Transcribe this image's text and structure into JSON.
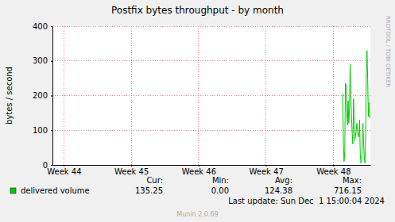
{
  "chart_data": {
    "type": "line",
    "title": "Postfix bytes throughput - by month",
    "y_label": "bytes / second",
    "x": [
      48.14,
      48.15,
      48.16,
      48.17,
      48.18,
      48.19,
      48.2,
      48.21,
      48.22,
      48.23,
      48.24,
      48.25,
      48.26,
      48.27,
      48.28,
      48.29,
      48.3,
      48.31,
      48.32,
      48.33,
      48.34,
      48.35,
      48.36,
      48.37,
      48.38,
      48.39,
      48.4,
      48.41,
      48.42,
      48.43,
      48.44,
      48.45,
      48.46,
      48.47,
      48.48,
      48.49,
      48.5,
      48.51,
      48.52,
      48.53,
      48.54
    ],
    "series": [
      {
        "name": "delivered volume",
        "color": "#00CC00",
        "values": [
          205,
          60,
          10,
          40,
          235,
          230,
          150,
          115,
          185,
          120,
          160,
          290,
          200,
          140,
          90,
          60,
          190,
          120,
          70,
          85,
          100,
          120,
          95,
          85,
          80,
          130,
          30,
          5,
          10,
          60,
          120,
          60,
          20,
          5,
          90,
          250,
          330,
          250,
          140,
          180,
          135
        ],
        "stats": {
          "labels": [
            "Cur:",
            "Min:",
            "Avg:",
            "Max:"
          ],
          "values": [
            135.25,
            0,
            124.38,
            716.15
          ],
          "value_labels": [
            "135.25",
            "0.00",
            "124.38",
            "716.15"
          ]
        }
      }
    ],
    "xlim": [
      43.83,
      48.55
    ],
    "xticks": [
      {
        "value": 44,
        "label": "Week 44"
      },
      {
        "value": 45,
        "label": "Week 45"
      },
      {
        "value": 46,
        "label": "Week 46"
      },
      {
        "value": 47,
        "label": "Week 47"
      },
      {
        "value": 48,
        "label": "Week 48"
      }
    ],
    "ylim": [
      0,
      400
    ],
    "yticks": [
      0,
      100,
      200,
      300,
      400
    ],
    "grid": true,
    "last_update": "Last update: Sun Dec  1 15:00:04 2024",
    "watermark": "RRDTOOL / TOBI OETIKER",
    "footer": "Munin 2.0.69"
  }
}
